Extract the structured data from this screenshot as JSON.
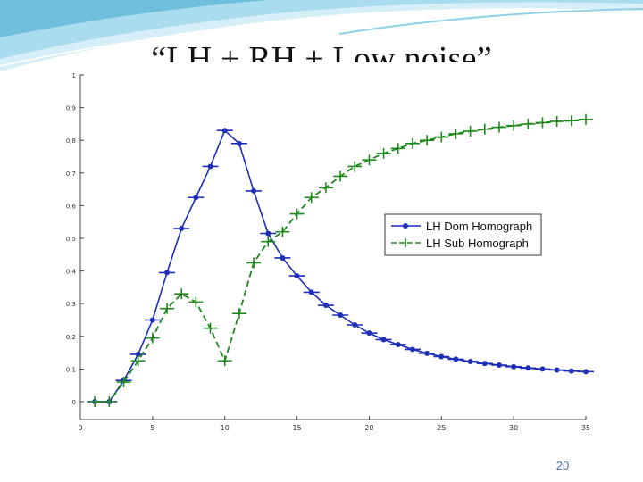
{
  "slide": {
    "title": "“LH + RH + Low noise”",
    "page_number": "20"
  },
  "colors": {
    "series_dom": "#1f2fb8",
    "series_sub": "#1f8a1f",
    "banner_light": "#d6eef8",
    "banner_mid": "#7fc6e0",
    "axis": "#444444"
  },
  "chart_data": {
    "type": "line",
    "xlim": [
      0,
      35
    ],
    "ylim": [
      0,
      1
    ],
    "x_ticks": [
      0,
      5,
      10,
      15,
      20,
      25,
      30,
      35
    ],
    "x_tick_labels": [
      "0",
      "5",
      "10",
      "15",
      "20",
      "25",
      "30",
      "35"
    ],
    "y_ticks": [
      0,
      0.1,
      0.2,
      0.3,
      0.4,
      0.5,
      0.6,
      0.7,
      0.8,
      0.9,
      1
    ],
    "y_tick_labels": [
      "0",
      "0,1",
      "0,2",
      "0,3",
      "0,4",
      "0,5",
      "0,6",
      "0,7",
      "0,8",
      "0,9",
      "1"
    ],
    "grid": false,
    "legend_position": "center-right",
    "x": [
      1,
      2,
      3,
      4,
      5,
      6,
      7,
      8,
      9,
      10,
      11,
      12,
      13,
      14,
      15,
      16,
      17,
      18,
      19,
      20,
      21,
      22,
      23,
      24,
      25,
      26,
      27,
      28,
      29,
      30,
      31,
      32,
      33,
      34,
      35
    ],
    "series": [
      {
        "name": "LH Dom Homograph",
        "marker": "dot-dash",
        "line": "solid",
        "values": [
          0.0,
          0.0,
          0.065,
          0.145,
          0.25,
          0.395,
          0.53,
          0.625,
          0.72,
          0.83,
          0.79,
          0.645,
          0.515,
          0.44,
          0.385,
          0.335,
          0.295,
          0.265,
          0.235,
          0.21,
          0.19,
          0.175,
          0.16,
          0.148,
          0.138,
          0.13,
          0.123,
          0.117,
          0.112,
          0.107,
          0.103,
          0.1,
          0.097,
          0.094,
          0.092
        ]
      },
      {
        "name": "LH Sub Homograph",
        "marker": "plus",
        "line": "dashed",
        "values": [
          0.0,
          0.0,
          0.06,
          0.125,
          0.195,
          0.285,
          0.33,
          0.305,
          0.225,
          0.125,
          0.27,
          0.425,
          0.49,
          0.52,
          0.575,
          0.625,
          0.655,
          0.69,
          0.72,
          0.74,
          0.76,
          0.775,
          0.79,
          0.8,
          0.81,
          0.82,
          0.828,
          0.834,
          0.84,
          0.845,
          0.85,
          0.854,
          0.858,
          0.86,
          0.864
        ]
      }
    ]
  }
}
